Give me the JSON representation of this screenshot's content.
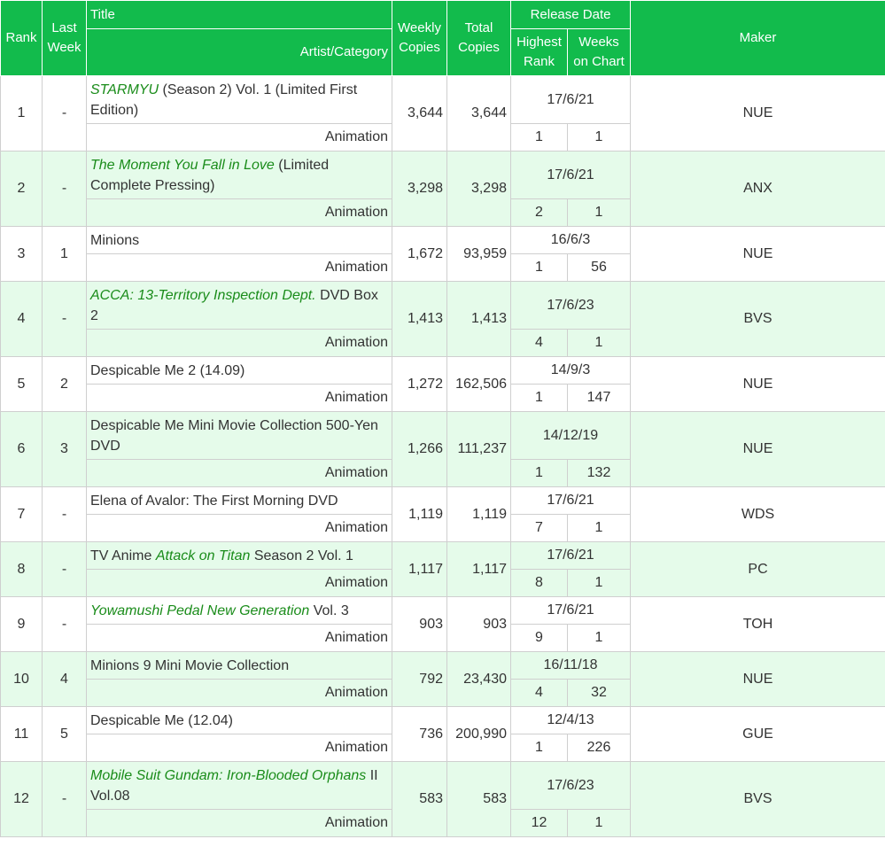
{
  "header": {
    "rank": "Rank",
    "last_week": "Last Week",
    "title": "Title",
    "artist_category": "Artist/Category",
    "weekly_copies": "Weekly Copies",
    "total_copies": "Total Copies",
    "release_date": "Release Date",
    "highest_rank": "Highest Rank",
    "weeks_on_chart": "Weeks on Chart",
    "maker": "Maker"
  },
  "rows": [
    {
      "rank": "1",
      "last_week": "-",
      "title": [
        {
          "text": "STARMYU",
          "em": true
        },
        {
          "text": " (Season 2) Vol. 1 (Limited First Edition)"
        }
      ],
      "category": "Animation",
      "weekly": "3,644",
      "total": "3,644",
      "release_date": "17/6/21",
      "highest_rank": "1",
      "weeks_on_chart": "1",
      "maker": "NUE"
    },
    {
      "rank": "2",
      "last_week": "-",
      "title": [
        {
          "text": "The Moment You Fall in Love",
          "em": true
        },
        {
          "text": " (Limited Complete Pressing)"
        }
      ],
      "category": "Animation",
      "weekly": "3,298",
      "total": "3,298",
      "release_date": "17/6/21",
      "highest_rank": "2",
      "weeks_on_chart": "1",
      "maker": "ANX"
    },
    {
      "rank": "3",
      "last_week": "1",
      "title": [
        {
          "text": "Minions"
        }
      ],
      "category": "Animation",
      "weekly": "1,672",
      "total": "93,959",
      "release_date": "16/6/3",
      "highest_rank": "1",
      "weeks_on_chart": "56",
      "maker": "NUE"
    },
    {
      "rank": "4",
      "last_week": "-",
      "title": [
        {
          "text": "ACCA: 13-Territory Inspection Dept.",
          "em": true
        },
        {
          "text": " DVD Box 2"
        }
      ],
      "category": "Animation",
      "weekly": "1,413",
      "total": "1,413",
      "release_date": "17/6/23",
      "highest_rank": "4",
      "weeks_on_chart": "1",
      "maker": "BVS"
    },
    {
      "rank": "5",
      "last_week": "2",
      "title": [
        {
          "text": "Despicable Me 2 (14.09)"
        }
      ],
      "category": "Animation",
      "weekly": "1,272",
      "total": "162,506",
      "release_date": "14/9/3",
      "highest_rank": "1",
      "weeks_on_chart": "147",
      "maker": "NUE"
    },
    {
      "rank": "6",
      "last_week": "3",
      "title": [
        {
          "text": "Despicable Me Mini Movie Collection 500-Yen DVD"
        }
      ],
      "category": "Animation",
      "weekly": "1,266",
      "total": "111,237",
      "release_date": "14/12/19",
      "highest_rank": "1",
      "weeks_on_chart": "132",
      "maker": "NUE"
    },
    {
      "rank": "7",
      "last_week": "-",
      "title": [
        {
          "text": "Elena of Avalor: The First Morning DVD"
        }
      ],
      "category": "Animation",
      "weekly": "1,119",
      "total": "1,119",
      "release_date": "17/6/21",
      "highest_rank": "7",
      "weeks_on_chart": "1",
      "maker": "WDS"
    },
    {
      "rank": "8",
      "last_week": "-",
      "title": [
        {
          "text": "TV Anime "
        },
        {
          "text": "Attack on Titan",
          "em": true
        },
        {
          "text": " Season 2 Vol. 1"
        }
      ],
      "category": "Animation",
      "weekly": "1,117",
      "total": "1,117",
      "release_date": "17/6/21",
      "highest_rank": "8",
      "weeks_on_chart": "1",
      "maker": "PC"
    },
    {
      "rank": "9",
      "last_week": "-",
      "title": [
        {
          "text": "Yowamushi Pedal New Generation",
          "em": true
        },
        {
          "text": " Vol. 3"
        }
      ],
      "category": "Animation",
      "weekly": "903",
      "total": "903",
      "release_date": "17/6/21",
      "highest_rank": "9",
      "weeks_on_chart": "1",
      "maker": "TOH"
    },
    {
      "rank": "10",
      "last_week": "4",
      "title": [
        {
          "text": "Minions 9 Mini Movie Collection"
        }
      ],
      "category": "Animation",
      "weekly": "792",
      "total": "23,430",
      "release_date": "16/11/18",
      "highest_rank": "4",
      "weeks_on_chart": "32",
      "maker": "NUE"
    },
    {
      "rank": "11",
      "last_week": "5",
      "title": [
        {
          "text": "Despicable Me (12.04)"
        }
      ],
      "category": "Animation",
      "weekly": "736",
      "total": "200,990",
      "release_date": "12/4/13",
      "highest_rank": "1",
      "weeks_on_chart": "226",
      "maker": "GUE"
    },
    {
      "rank": "12",
      "last_week": "-",
      "title": [
        {
          "text": "Mobile Suit Gundam: Iron-Blooded Orphans",
          "em": true
        },
        {
          "text": " II Vol.08"
        }
      ],
      "category": "Animation",
      "weekly": "583",
      "total": "583",
      "release_date": "17/6/23",
      "highest_rank": "12",
      "weeks_on_chart": "1",
      "maker": "BVS"
    }
  ]
}
